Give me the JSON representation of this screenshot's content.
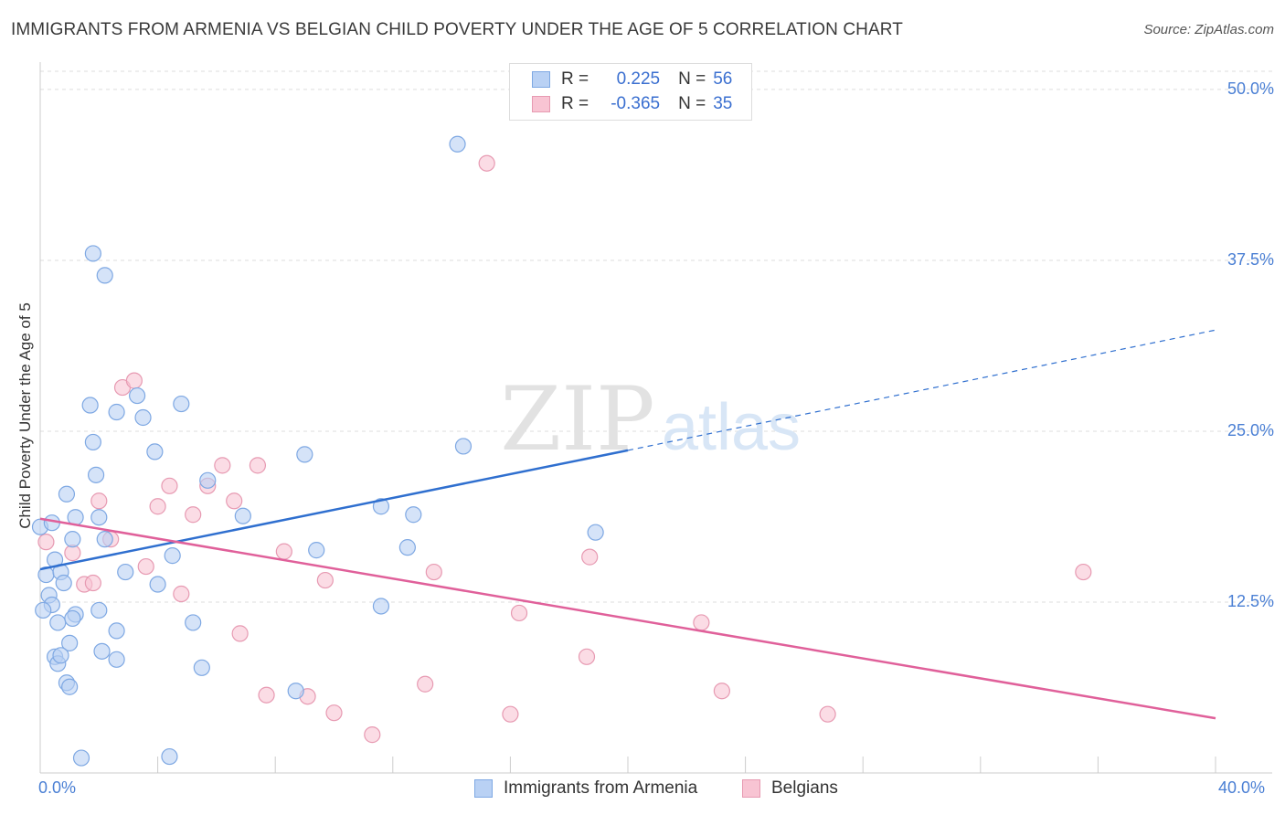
{
  "title": "IMMIGRANTS FROM ARMENIA VS BELGIAN CHILD POVERTY UNDER THE AGE OF 5 CORRELATION CHART",
  "source": "Source: ZipAtlas.com",
  "watermark": {
    "zip": "ZIP",
    "atlas": "atlas"
  },
  "legend": {
    "r_label": "R =",
    "n_label": "N =",
    "rows": [
      {
        "r": "0.225",
        "n": "56"
      },
      {
        "r": "-0.365",
        "n": "35"
      }
    ]
  },
  "colors": {
    "blue_fill": "#b9d1f4",
    "blue_stroke": "#7ea8e3",
    "blue_line": "#2f6fcf",
    "pink_fill": "#f8c4d3",
    "pink_stroke": "#e79ab2",
    "pink_line": "#e0609a",
    "tick_text": "#4a7fd4",
    "grid": "#dddddd"
  },
  "chart_data": {
    "type": "scatter",
    "title": "IMMIGRANTS FROM ARMENIA VS BELGIAN CHILD POVERTY UNDER THE AGE OF 5 CORRELATION CHART",
    "xlabel": "",
    "ylabel": "Child Poverty Under the Age of 5",
    "xlim": [
      0,
      40
    ],
    "ylim": [
      0,
      52
    ],
    "x_tick_labels": [
      "0.0%",
      "40.0%"
    ],
    "y_ticks": [
      12.5,
      25.0,
      37.5,
      50.0
    ],
    "y_tick_labels": [
      "12.5%",
      "25.0%",
      "37.5%",
      "50.0%"
    ],
    "series": [
      {
        "name": "Immigrants from Armenia",
        "color": "blue",
        "trend": {
          "x0": 0,
          "y0": 14.9,
          "x1": 20,
          "y1": 23.6,
          "dashed_to_x": 40,
          "dashed_to_y": 32.4
        },
        "points": [
          [
            0.0,
            18.0
          ],
          [
            0.2,
            14.5
          ],
          [
            0.3,
            13.0
          ],
          [
            0.4,
            12.3
          ],
          [
            0.1,
            11.9
          ],
          [
            0.5,
            15.6
          ],
          [
            0.7,
            14.7
          ],
          [
            0.8,
            13.9
          ],
          [
            0.6,
            11.0
          ],
          [
            0.4,
            18.3
          ],
          [
            0.9,
            20.4
          ],
          [
            1.1,
            17.1
          ],
          [
            1.2,
            18.7
          ],
          [
            1.2,
            11.6
          ],
          [
            1.1,
            11.3
          ],
          [
            1.0,
            9.5
          ],
          [
            0.5,
            8.5
          ],
          [
            0.6,
            8.0
          ],
          [
            0.7,
            8.6
          ],
          [
            0.9,
            6.6
          ],
          [
            1.0,
            6.3
          ],
          [
            1.7,
            26.9
          ],
          [
            1.8,
            24.2
          ],
          [
            1.9,
            21.8
          ],
          [
            2.0,
            18.7
          ],
          [
            2.2,
            17.1
          ],
          [
            2.0,
            11.9
          ],
          [
            2.1,
            8.9
          ],
          [
            2.6,
            10.4
          ],
          [
            2.6,
            8.3
          ],
          [
            2.6,
            26.4
          ],
          [
            2.9,
            14.7
          ],
          [
            3.3,
            27.6
          ],
          [
            3.5,
            26.0
          ],
          [
            3.9,
            23.5
          ],
          [
            4.0,
            13.8
          ],
          [
            4.5,
            15.9
          ],
          [
            4.8,
            27.0
          ],
          [
            5.2,
            11.0
          ],
          [
            5.5,
            7.7
          ],
          [
            5.7,
            21.4
          ],
          [
            6.9,
            18.8
          ],
          [
            9.0,
            23.3
          ],
          [
            9.4,
            16.3
          ],
          [
            11.6,
            19.5
          ],
          [
            11.6,
            12.2
          ],
          [
            12.5,
            16.5
          ],
          [
            12.7,
            18.9
          ],
          [
            14.4,
            23.9
          ],
          [
            14.2,
            46.0
          ],
          [
            18.9,
            17.6
          ],
          [
            2.2,
            36.4
          ],
          [
            1.8,
            38.0
          ],
          [
            1.4,
            1.1
          ],
          [
            4.4,
            1.2
          ],
          [
            8.7,
            6.0
          ]
        ]
      },
      {
        "name": "Belgians",
        "color": "pink",
        "trend": {
          "x0": 0,
          "y0": 18.6,
          "x1": 40,
          "y1": 4.0
        },
        "points": [
          [
            0.2,
            16.9
          ],
          [
            1.1,
            16.1
          ],
          [
            1.5,
            13.8
          ],
          [
            2.0,
            19.9
          ],
          [
            2.4,
            17.1
          ],
          [
            2.8,
            28.2
          ],
          [
            3.2,
            28.7
          ],
          [
            3.6,
            15.1
          ],
          [
            4.0,
            19.5
          ],
          [
            4.4,
            21.0
          ],
          [
            4.8,
            13.1
          ],
          [
            5.2,
            18.9
          ],
          [
            5.7,
            21.0
          ],
          [
            6.2,
            22.5
          ],
          [
            6.6,
            19.9
          ],
          [
            6.8,
            10.2
          ],
          [
            7.4,
            22.5
          ],
          [
            7.7,
            5.7
          ],
          [
            8.3,
            16.2
          ],
          [
            9.1,
            5.6
          ],
          [
            9.7,
            14.1
          ],
          [
            10.0,
            4.4
          ],
          [
            11.3,
            2.8
          ],
          [
            13.1,
            6.5
          ],
          [
            13.4,
            14.7
          ],
          [
            15.2,
            44.6
          ],
          [
            16.0,
            4.3
          ],
          [
            16.3,
            11.7
          ],
          [
            18.6,
            8.5
          ],
          [
            18.7,
            15.8
          ],
          [
            22.5,
            11.0
          ],
          [
            23.2,
            6.0
          ],
          [
            26.8,
            4.3
          ],
          [
            35.5,
            14.7
          ],
          [
            1.8,
            13.9
          ]
        ]
      }
    ]
  },
  "bottom_legend": [
    {
      "label": "Immigrants from Armenia"
    },
    {
      "label": "Belgians"
    }
  ]
}
